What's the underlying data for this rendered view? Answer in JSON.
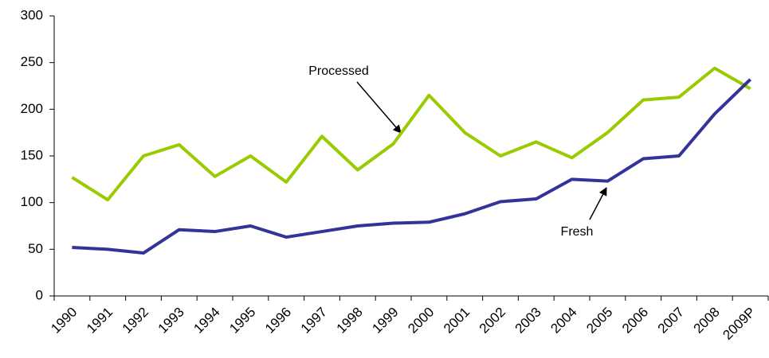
{
  "chart_data": {
    "type": "line",
    "categories": [
      "1990",
      "1991",
      "1992",
      "1993",
      "1994",
      "1995",
      "1996",
      "1997",
      "1998",
      "1999",
      "2000",
      "2001",
      "2002",
      "2003",
      "2004",
      "2005",
      "2006",
      "2007",
      "2008",
      "2009P"
    ],
    "series": [
      {
        "name": "Processed",
        "color": "#99cc00",
        "values": [
          127,
          103,
          150,
          162,
          128,
          150,
          122,
          171,
          135,
          163,
          215,
          175,
          150,
          165,
          148,
          175,
          210,
          213,
          244,
          222
        ]
      },
      {
        "name": "Fresh",
        "color": "#333399",
        "values": [
          52,
          50,
          46,
          71,
          69,
          75,
          63,
          69,
          75,
          78,
          79,
          88,
          101,
          104,
          125,
          123,
          147,
          150,
          195,
          232
        ]
      }
    ],
    "annotations": [
      "Processed",
      "Fresh"
    ],
    "ylim": [
      0,
      300
    ],
    "yticks": [
      0,
      50,
      100,
      150,
      200,
      250,
      300
    ],
    "grid": false
  }
}
